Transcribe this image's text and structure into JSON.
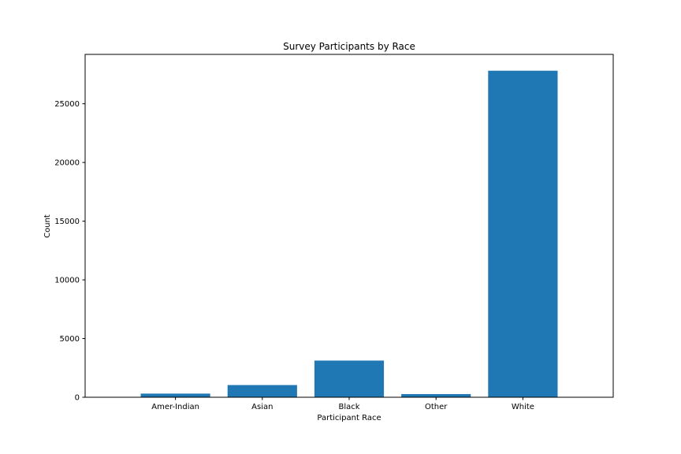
{
  "chart_data": {
    "type": "bar",
    "title": "Survey Participants by Race",
    "xlabel": "Participant Race",
    "ylabel": "Count",
    "categories": [
      "Amer-Indian",
      "Asian",
      "Black",
      "Other",
      "White"
    ],
    "values": [
      311,
      1039,
      3124,
      271,
      27816
    ],
    "ylim": [
      0,
      29207
    ],
    "yticks": [
      0,
      5000,
      10000,
      15000,
      20000,
      25000
    ],
    "grid": false,
    "bar_color": "#1f77b4"
  }
}
